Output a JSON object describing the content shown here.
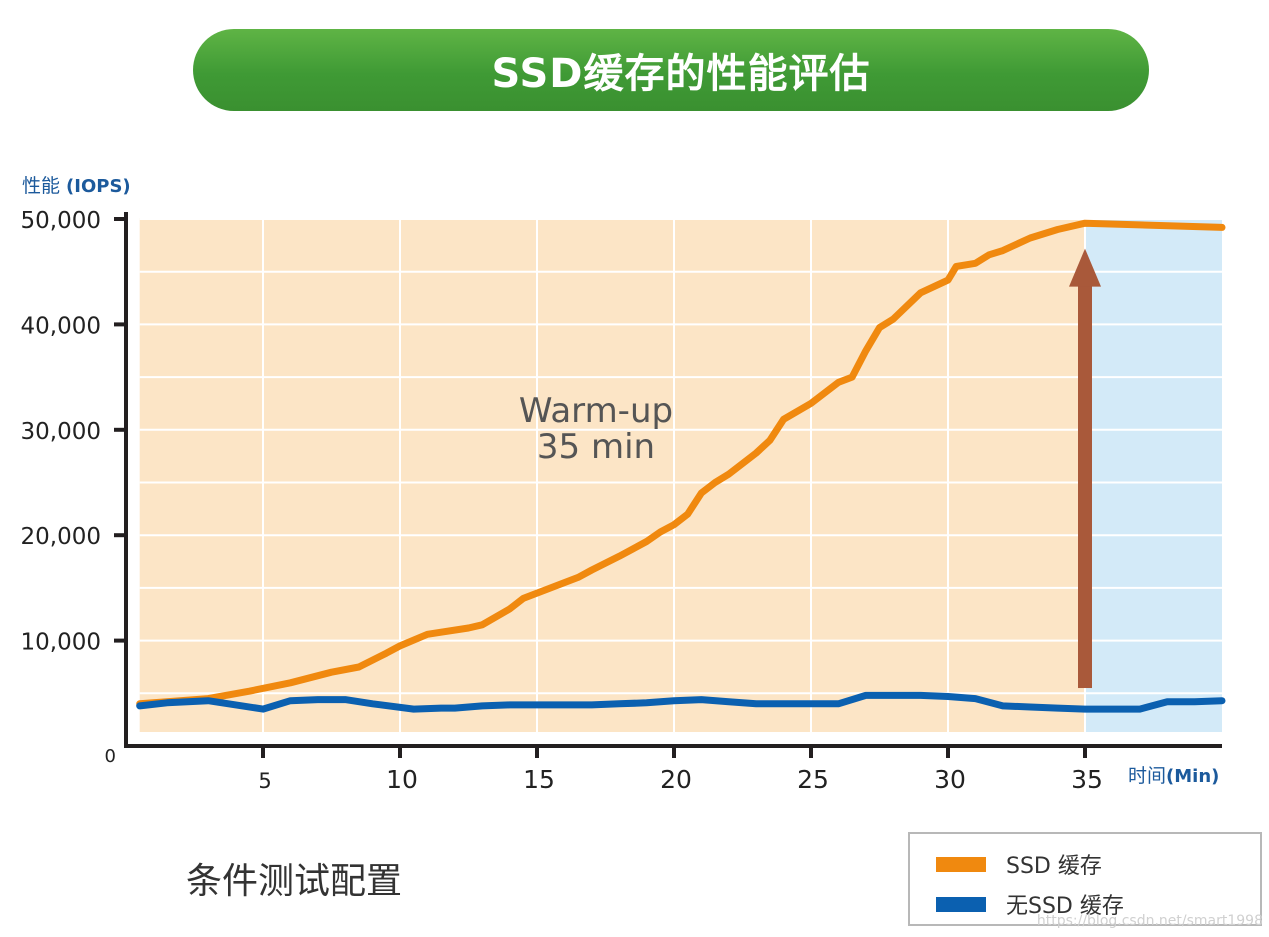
{
  "banner": {
    "title": "SSD缓存的性能评估"
  },
  "colors": {
    "warmup_bg": "#fce5c6",
    "steady_bg": "#d3eaf8",
    "ssd_series": "#f0890f",
    "nossd_series": "#0b60b0",
    "arrow": "#a9593a",
    "axis": "#231f20",
    "axis_label_blue": "#1c5a9c"
  },
  "chart_data": {
    "type": "line",
    "ylabel_prefix": "性能",
    "ylabel_unit": "(IOPS)",
    "xlabel_prefix": "时间",
    "xlabel_unit": "(Min)",
    "xlim": [
      0,
      40
    ],
    "ylim": [
      0,
      50000
    ],
    "xticks": [
      5,
      10,
      15,
      20,
      25,
      30,
      35
    ],
    "xtick_labels": [
      "5",
      "10",
      "15",
      "20",
      "25",
      "30",
      "35"
    ],
    "yticks": [
      0,
      10000,
      20000,
      30000,
      40000,
      50000
    ],
    "ytick_labels": [
      "0",
      "10,000",
      "20,000",
      "30,000",
      "40,000",
      "50,000"
    ],
    "grid": true,
    "annotation": {
      "line1": "Warm-up",
      "line2": "35 min"
    },
    "regions": [
      {
        "name": "warm-up",
        "x": [
          0.5,
          35
        ]
      },
      {
        "name": "steady",
        "x": [
          35,
          40
        ]
      }
    ],
    "arrow": {
      "x": 35,
      "y_from": 5500,
      "y_to": 47000
    },
    "series": [
      {
        "name": "SSD 缓存",
        "x": [
          0.5,
          1.5,
          3,
          4.5,
          6,
          7.5,
          8.5,
          9.5,
          10,
          11,
          11.5,
          12.5,
          13,
          14,
          14.5,
          15.5,
          16.5,
          17,
          18,
          19,
          19.5,
          20,
          20.5,
          21,
          21.5,
          22,
          23,
          23.5,
          24,
          25,
          26,
          26.5,
          27,
          27.5,
          28,
          29,
          30,
          30.3,
          31,
          31.5,
          32,
          33,
          34,
          35,
          40
        ],
        "y": [
          4000,
          4200,
          4500,
          5200,
          6000,
          7000,
          7500,
          8800,
          9500,
          10600,
          10800,
          11200,
          11500,
          13000,
          14000,
          15000,
          16000,
          16700,
          18000,
          19400,
          20300,
          21000,
          22000,
          24000,
          25000,
          25800,
          27800,
          29000,
          31000,
          32500,
          34500,
          35000,
          37500,
          39700,
          40500,
          43000,
          44200,
          45500,
          45800,
          46600,
          47000,
          48200,
          49000,
          49600,
          49200
        ]
      },
      {
        "name": "无SSD 缓存",
        "x": [
          0.5,
          1.5,
          3,
          5,
          6,
          7,
          8,
          9,
          10.5,
          11.5,
          12,
          13,
          14,
          15,
          16,
          17,
          18,
          19,
          20,
          21,
          22,
          23,
          24,
          25,
          26,
          27,
          28,
          29,
          30,
          31,
          32,
          33,
          34,
          35,
          36,
          37,
          38,
          39,
          40
        ],
        "y": [
          3800,
          4100,
          4300,
          3500,
          4300,
          4400,
          4400,
          4000,
          3500,
          3600,
          3600,
          3800,
          3900,
          3900,
          3900,
          3900,
          4000,
          4100,
          4300,
          4400,
          4200,
          4000,
          4000,
          4000,
          4000,
          4800,
          4800,
          4800,
          4700,
          4500,
          3800,
          3700,
          3600,
          3500,
          3500,
          3500,
          4200,
          4200,
          4300
        ]
      }
    ]
  },
  "legend": {
    "items": [
      {
        "label": "SSD 缓存",
        "color": "#f0890f"
      },
      {
        "label": "无SSD 缓存",
        "color": "#0b60b0"
      }
    ]
  },
  "footer": {
    "condition_label": "条件测试配置"
  },
  "watermark": "https://blog.csdn.net/smart1998"
}
